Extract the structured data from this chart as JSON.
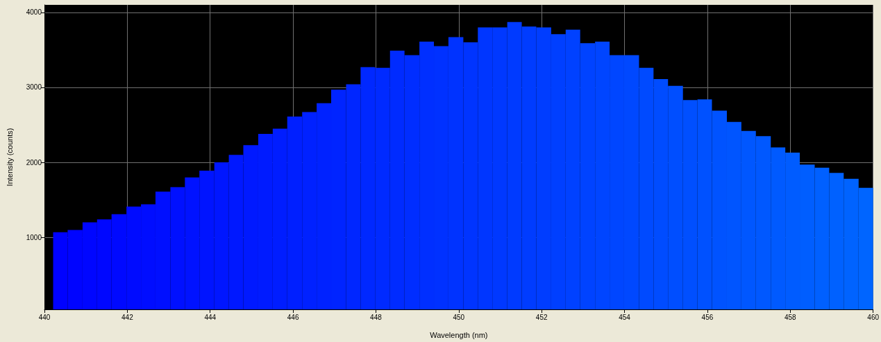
{
  "chart_data": {
    "type": "histogram",
    "xlabel": "Wavelength (nm)",
    "ylabel": "Intensity (counts)",
    "bins": [
      440.21,
      440.56,
      440.92,
      441.27,
      441.62,
      441.98,
      442.33,
      442.68,
      443.04,
      443.39,
      443.74,
      444.1,
      444.45,
      444.8,
      445.16,
      445.51,
      445.86,
      446.22,
      446.57,
      446.92,
      447.28,
      447.63,
      447.98,
      448.34,
      448.69,
      449.05,
      449.4,
      449.75,
      450.11,
      450.46,
      450.81,
      451.17,
      451.52,
      451.87,
      452.23,
      452.58,
      452.93,
      453.29,
      453.64,
      453.99,
      454.35,
      454.7,
      455.05,
      455.41,
      455.76,
      456.11,
      456.47,
      456.82,
      457.17,
      457.53,
      457.88,
      458.23,
      458.59,
      458.94,
      459.29,
      459.65,
      460.0
    ],
    "values": [
      1070,
      1100,
      1200,
      1240,
      1310,
      1410,
      1440,
      1610,
      1670,
      1800,
      1890,
      2000,
      2100,
      2230,
      2380,
      2450,
      2610,
      2670,
      2790,
      2970,
      3040,
      3270,
      3260,
      3490,
      3430,
      3610,
      3550,
      3670,
      3600,
      3800,
      3800,
      3870,
      3810,
      3800,
      3710,
      3770,
      3590,
      3610,
      3430,
      3430,
      3260,
      3110,
      3020,
      2830,
      2840,
      2690,
      2540,
      2420,
      2350,
      2200,
      2130,
      1970,
      1930,
      1860,
      1780,
      1660
    ],
    "colors": [
      "#0002ff",
      "#0004ff",
      "#0006ff",
      "#0007ff",
      "#0009ff",
      "#000bff",
      "#000dff",
      "#000fff",
      "#0010ff",
      "#0012ff",
      "#0014ff",
      "#0016ff",
      "#0018ff",
      "#0019ff",
      "#001bff",
      "#001dff",
      "#001fff",
      "#0021ff",
      "#0022ff",
      "#0024ff",
      "#0026ff",
      "#0028ff",
      "#002aff",
      "#002bff",
      "#002dff",
      "#002fff",
      "#0031ff",
      "#0033ff",
      "#0034ff",
      "#0036ff",
      "#0038ff",
      "#003aff",
      "#003cff",
      "#003dff",
      "#003fff",
      "#0041ff",
      "#0043ff",
      "#0045ff",
      "#0046ff",
      "#0048ff",
      "#004aff",
      "#004cff",
      "#004eff",
      "#004fff",
      "#0051ff",
      "#0053ff",
      "#0055ff",
      "#0057ff",
      "#0058ff",
      "#005aff",
      "#005cff",
      "#005eff",
      "#0060ff",
      "#0061ff",
      "#0063ff",
      "#0065ff"
    ],
    "xlim": [
      440,
      460
    ],
    "xticks": [
      440,
      442,
      444,
      446,
      448,
      450,
      452,
      454,
      456,
      458,
      460
    ],
    "ylim": [
      40,
      4100
    ],
    "yticks": [
      1000,
      2000,
      3000,
      4000
    ],
    "grid": true
  }
}
